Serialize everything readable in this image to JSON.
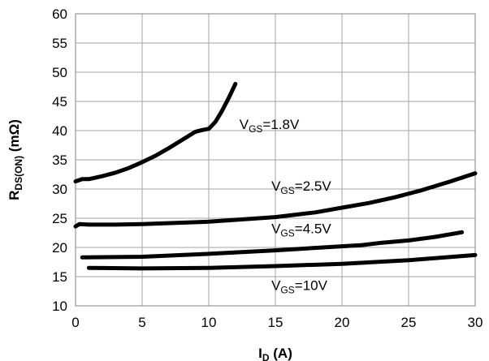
{
  "chart_data": {
    "type": "line",
    "xlabel": "I",
    "xlabel_sub": "D",
    "xlabel_unit": " (A)",
    "ylabel": "R",
    "ylabel_sub": "DS(ON)",
    "ylabel_unit": " (mΩ)",
    "xlim": [
      0,
      30
    ],
    "ylim": [
      10,
      60
    ],
    "xticks": [
      0,
      5,
      10,
      15,
      20,
      25,
      30
    ],
    "yticks": [
      10,
      15,
      20,
      25,
      30,
      35,
      40,
      45,
      50,
      55,
      60
    ],
    "grid": true,
    "series": [
      {
        "name": "VGS=1.8V",
        "label_parts": [
          "V",
          "GS",
          "=1.8V"
        ],
        "x": [
          0,
          0.5,
          1,
          2,
          3,
          4,
          5,
          6,
          7,
          8,
          9,
          9.5,
          10,
          10.5,
          11,
          11.5,
          12
        ],
        "y": [
          31.3,
          31.7,
          31.7,
          32.2,
          32.8,
          33.6,
          34.6,
          35.7,
          37,
          38.4,
          39.8,
          40.1,
          40.3,
          41.5,
          43.4,
          45.6,
          48
        ]
      },
      {
        "name": "VGS=2.5V",
        "label_parts": [
          "V",
          "GS",
          "=2.5V"
        ],
        "x": [
          0,
          0.3,
          1,
          3,
          5,
          10,
          15,
          18,
          20,
          22,
          24,
          26,
          28,
          30
        ],
        "y": [
          23.6,
          24,
          23.9,
          23.9,
          24,
          24.4,
          25.2,
          26,
          26.8,
          27.6,
          28.6,
          29.8,
          31.2,
          32.7
        ]
      },
      {
        "name": "VGS=4.5V",
        "label_parts": [
          "V",
          "GS",
          "=4.5V"
        ],
        "x": [
          0.5,
          5,
          10,
          15,
          20,
          21.5,
          23,
          25,
          27,
          29
        ],
        "y": [
          18.3,
          18.4,
          18.9,
          19.5,
          20.2,
          20.4,
          20.8,
          21.2,
          21.8,
          22.6
        ]
      },
      {
        "name": "VGS=10V",
        "label_parts": [
          "V",
          "GS",
          "=10V"
        ],
        "x": [
          1,
          5,
          10,
          15,
          20,
          25,
          30
        ],
        "y": [
          16.5,
          16.4,
          16.5,
          16.8,
          17.2,
          17.8,
          18.7
        ]
      }
    ]
  }
}
